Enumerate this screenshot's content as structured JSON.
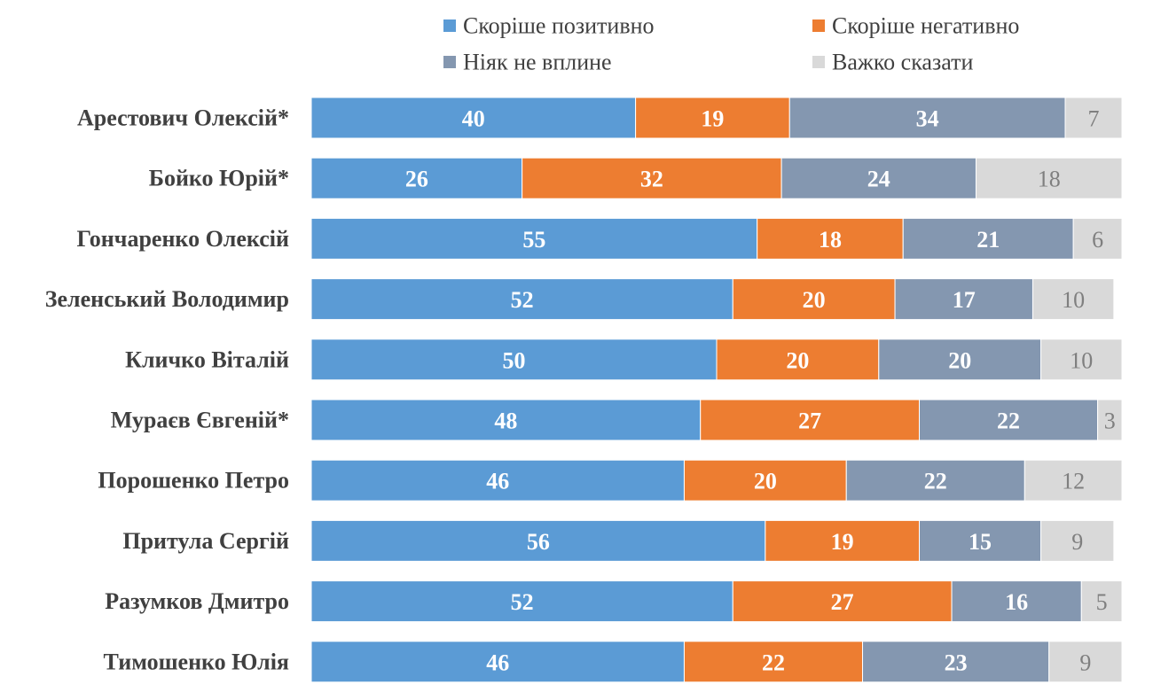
{
  "chart_data": {
    "type": "bar",
    "orientation": "horizontal",
    "stacked": true,
    "title": "",
    "xlabel": "",
    "ylabel": "",
    "xlim": [
      0,
      100
    ],
    "grid": false,
    "legend_position": "top",
    "categories": [
      "Арестович Олексій*",
      "Бойко Юрій*",
      "Гончаренко Олексій",
      "Зеленський Володимир",
      "Кличко Віталій",
      "Мураєв Євгеній*",
      "Порошенко Петро",
      "Притула Сергій",
      "Разумков Дмитро",
      "Тимошенко Юлія"
    ],
    "series": [
      {
        "name": "Скоріше позитивно",
        "color": "#5b9bd5",
        "values": [
          40,
          26,
          55,
          52,
          50,
          48,
          46,
          56,
          52,
          46
        ]
      },
      {
        "name": "Скоріше негативно",
        "color": "#ed7d31",
        "values": [
          19,
          32,
          18,
          20,
          20,
          27,
          20,
          19,
          27,
          22
        ]
      },
      {
        "name": "Ніяк не вплине",
        "color": "#8497b0",
        "values": [
          34,
          24,
          21,
          17,
          20,
          22,
          22,
          15,
          16,
          23
        ]
      },
      {
        "name": "Важко сказати",
        "color": "#d9d9d9",
        "values": [
          7,
          18,
          6,
          10,
          10,
          3,
          12,
          9,
          5,
          9
        ]
      }
    ]
  }
}
